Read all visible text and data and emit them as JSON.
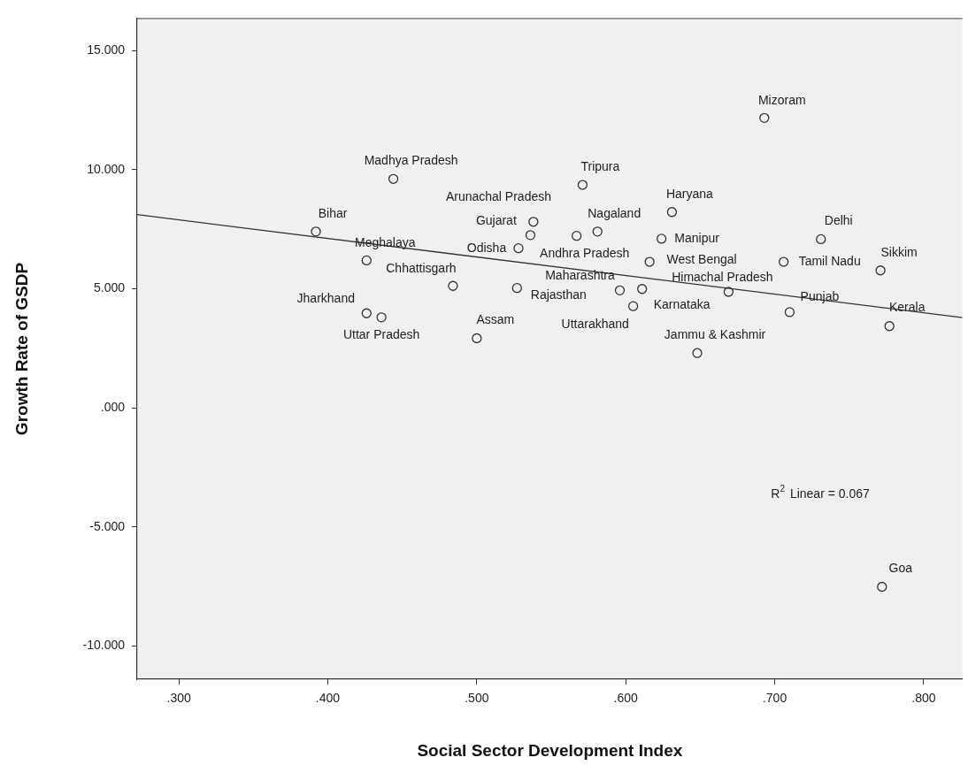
{
  "chart_data": {
    "type": "scatter",
    "xlabel": "Social Sector Development Index",
    "ylabel": "Growth Rate of GSDP",
    "xlim": [
      0.272,
      0.826
    ],
    "ylim": [
      -11.39,
      16.34
    ],
    "xticks": [
      {
        "value": 0.3,
        "label": ".300"
      },
      {
        "value": 0.4,
        "label": ".400"
      },
      {
        "value": 0.5,
        "label": ".500"
      },
      {
        "value": 0.6,
        "label": ".600"
      },
      {
        "value": 0.7,
        "label": ".700"
      },
      {
        "value": 0.8,
        "label": ".800"
      }
    ],
    "yticks": [
      {
        "value": -10,
        "label": "-10.000"
      },
      {
        "value": -5,
        "label": "-5.000"
      },
      {
        "value": 0,
        "label": ".000"
      },
      {
        "value": 5,
        "label": "5.000"
      },
      {
        "value": 10,
        "label": "10.000"
      },
      {
        "value": 15,
        "label": "15.000"
      }
    ],
    "marker": "circle",
    "series": [
      {
        "type": "scatter",
        "color": "#333333",
        "x": [
          0.444,
          0.392,
          0.538,
          0.536,
          0.528,
          0.426,
          0.484,
          0.527,
          0.426,
          0.436,
          0.5,
          0.693,
          0.571,
          0.631,
          0.581,
          0.567,
          0.624,
          0.731,
          0.616,
          0.706,
          0.771,
          0.596,
          0.611,
          0.669,
          0.605,
          0.71,
          0.777,
          0.648,
          0.772
        ],
        "values": [
          9.61,
          7.4,
          7.81,
          7.25,
          6.7,
          6.19,
          5.12,
          5.03,
          3.97,
          3.8,
          2.92,
          12.17,
          9.36,
          8.22,
          7.4,
          7.22,
          7.1,
          7.08,
          6.13,
          6.13,
          5.77,
          4.93,
          4.99,
          4.87,
          4.27,
          4.02,
          3.43,
          2.3,
          -7.51
        ]
      },
      {
        "type": "line",
        "color": "#333333",
        "marker": "none",
        "x": [
          0.272,
          0.826
        ],
        "values": [
          8.11,
          3.79
        ]
      }
    ],
    "annotations": [
      "R$^{2}$ Linear = 0.067",
      {
        "text": "Madhya Pradesh",
        "x": 0.444,
        "y": 9.61
      },
      {
        "text": "Bihar",
        "x": 0.392,
        "y": 7.4
      },
      {
        "text": "Gujarat",
        "x": 0.538,
        "y": 7.81
      },
      {
        "text": "Arunachal Pradesh",
        "x": 0.536,
        "y": 7.25
      },
      {
        "text": "Odisha",
        "x": 0.528,
        "y": 6.7
      },
      {
        "text": "Meghalaya",
        "x": 0.426,
        "y": 6.19
      },
      {
        "text": "Chhattisgarh",
        "x": 0.484,
        "y": 5.12
      },
      {
        "text": "Rajasthan",
        "x": 0.527,
        "y": 5.03
      },
      {
        "text": "Jharkhand",
        "x": 0.426,
        "y": 3.97
      },
      {
        "text": "Uttar Pradesh",
        "x": 0.436,
        "y": 3.8
      },
      {
        "text": "Assam",
        "x": 0.5,
        "y": 2.92
      },
      {
        "text": "Mizoram",
        "x": 0.693,
        "y": 12.17
      },
      {
        "text": "Tripura",
        "x": 0.571,
        "y": 9.36
      },
      {
        "text": "Haryana",
        "x": 0.631,
        "y": 8.22
      },
      {
        "text": "Nagaland",
        "x": 0.581,
        "y": 7.4
      },
      {
        "text": "Andhra Pradesh",
        "x": 0.567,
        "y": 7.22
      },
      {
        "text": "Manipur",
        "x": 0.624,
        "y": 7.1
      },
      {
        "text": "Delhi",
        "x": 0.731,
        "y": 7.08
      },
      {
        "text": "West Bengal",
        "x": 0.616,
        "y": 6.13
      },
      {
        "text": "Tamil Nadu",
        "x": 0.706,
        "y": 6.13
      },
      {
        "text": "Sikkim",
        "x": 0.771,
        "y": 5.77
      },
      {
        "text": "Maharashtra",
        "x": 0.596,
        "y": 4.93
      },
      {
        "text": "Uttarakhand",
        "x": 0.611,
        "y": 4.99
      },
      {
        "text": "Himachal Pradesh",
        "x": 0.669,
        "y": 4.87
      },
      {
        "text": "Karnataka",
        "x": 0.605,
        "y": 4.27
      },
      {
        "text": "Punjab",
        "x": 0.71,
        "y": 4.02
      },
      {
        "text": "Kerala",
        "x": 0.777,
        "y": 3.43
      },
      {
        "text": "Jammu & Kashmir",
        "x": 0.648,
        "y": 2.3
      },
      {
        "text": "Goa",
        "x": 0.772,
        "y": -7.51
      }
    ]
  }
}
